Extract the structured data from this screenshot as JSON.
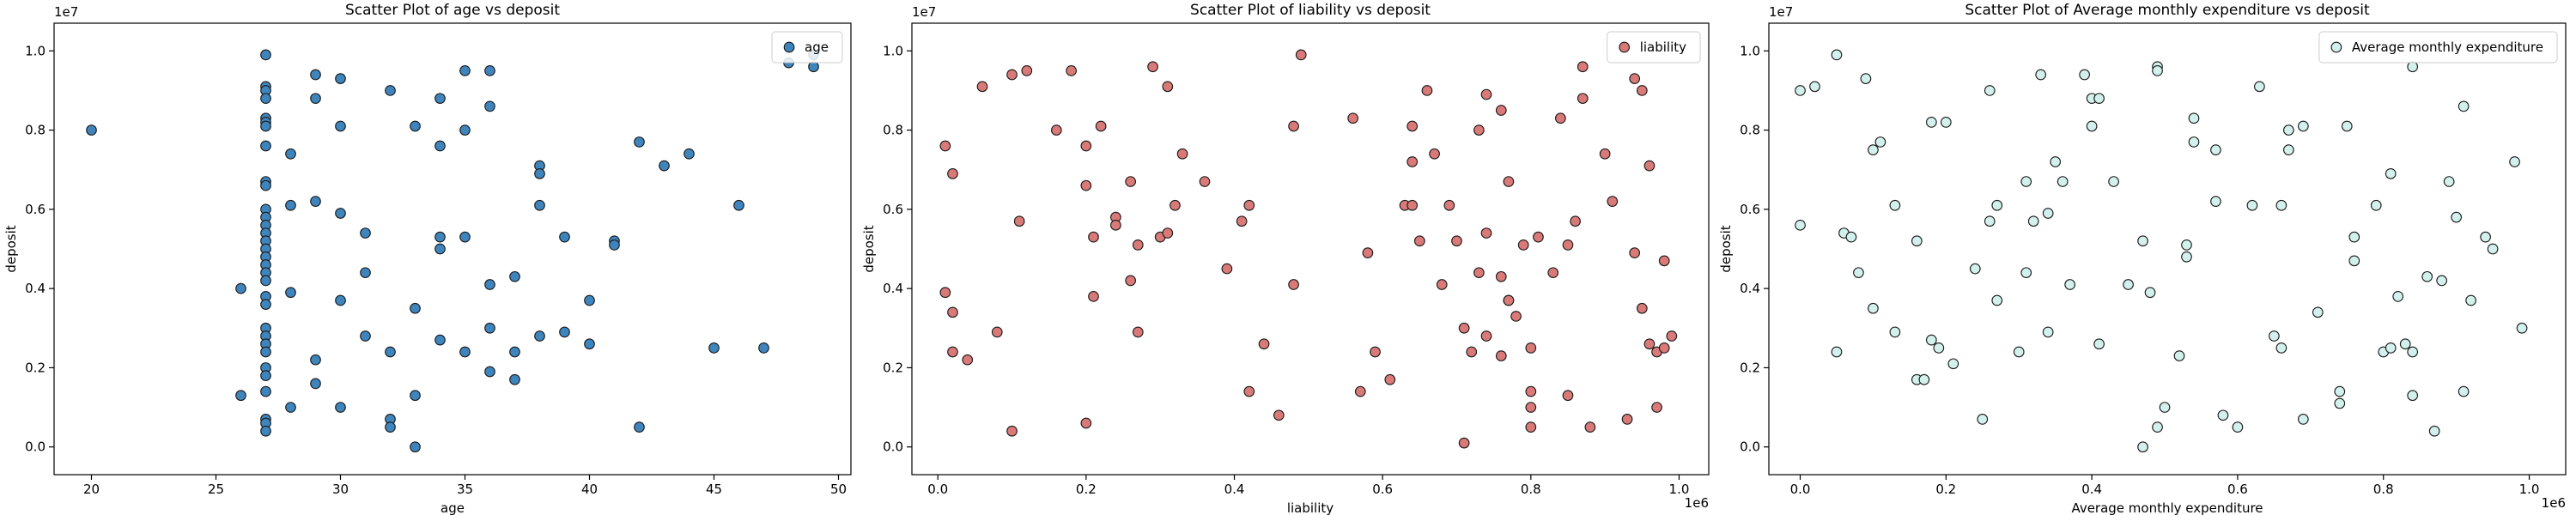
{
  "chart_data": [
    {
      "type": "scatter",
      "title": "Scatter Plot of age vs deposit",
      "x_label": "age",
      "y_label": "deposit",
      "y_offset_label": "1e7",
      "xlim": [
        18.5,
        50.5
      ],
      "xticks": [
        20,
        25,
        30,
        35,
        40,
        45,
        50
      ],
      "ylim": [
        -0.07,
        1.07
      ],
      "yticks": [
        {
          "value": 0,
          "label": "0.0"
        },
        0.2,
        0.4,
        0.6,
        0.8,
        {
          "value": 1,
          "label": "1.0"
        }
      ],
      "legend": "upper right",
      "grid": false,
      "series": [
        {
          "name": "age",
          "color": "#3f85bd",
          "edgecolor": "#1a1a1a",
          "x": [
            20,
            26,
            26,
            27,
            27,
            27,
            27,
            27,
            27,
            27,
            27,
            27,
            27,
            27,
            27,
            27,
            27,
            27,
            27,
            27,
            27,
            27,
            27,
            27,
            27,
            27,
            27,
            27,
            27,
            27,
            27,
            27,
            27,
            27,
            27,
            28,
            28,
            28,
            28,
            29,
            29,
            29,
            29,
            29,
            30,
            30,
            30,
            30,
            30,
            31,
            31,
            31,
            32,
            32,
            32,
            32,
            33,
            33,
            33,
            33,
            34,
            34,
            34,
            34,
            34,
            35,
            35,
            35,
            35,
            36,
            36,
            36,
            36,
            36,
            37,
            37,
            37,
            38,
            38,
            38,
            38,
            39,
            39,
            40,
            40,
            41,
            41,
            42,
            42,
            43,
            44,
            45,
            46,
            47,
            48,
            49,
            49
          ],
          "values": [
            0.8,
            0.4,
            0.13,
            0.99,
            0.91,
            0.9,
            0.88,
            0.83,
            0.82,
            0.81,
            0.76,
            0.67,
            0.66,
            0.6,
            0.58,
            0.56,
            0.54,
            0.52,
            0.5,
            0.48,
            0.46,
            0.44,
            0.42,
            0.38,
            0.36,
            0.3,
            0.28,
            0.26,
            0.24,
            0.2,
            0.18,
            0.14,
            0.07,
            0.06,
            0.04,
            0.74,
            0.61,
            0.39,
            0.1,
            0.94,
            0.88,
            0.62,
            0.22,
            0.16,
            0.93,
            0.81,
            0.59,
            0.37,
            0.1,
            0.54,
            0.44,
            0.28,
            0.9,
            0.24,
            0.07,
            0.05,
            0.81,
            0.35,
            0.13,
            0.0,
            0.88,
            0.76,
            0.53,
            0.5,
            0.27,
            0.95,
            0.8,
            0.53,
            0.24,
            0.95,
            0.86,
            0.41,
            0.3,
            0.19,
            0.43,
            0.24,
            0.17,
            0.71,
            0.69,
            0.61,
            0.28,
            0.53,
            0.29,
            0.37,
            0.26,
            0.52,
            0.51,
            0.77,
            0.05,
            0.71,
            0.74,
            0.25,
            0.61,
            0.25,
            0.97,
            0.99,
            0.96
          ]
        }
      ]
    },
    {
      "type": "scatter",
      "title": "Scatter Plot of liability vs deposit",
      "x_label": "liability",
      "y_label": "deposit",
      "y_offset_label": "1e7",
      "x_offset_label": "1e6",
      "xlim": [
        -0.035,
        1.04
      ],
      "xticks": [
        {
          "value": 0,
          "label": "0.0"
        },
        0.2,
        0.4,
        0.6,
        0.8,
        {
          "value": 1,
          "label": "1.0"
        }
      ],
      "ylim": [
        -0.07,
        1.07
      ],
      "yticks": [
        {
          "value": 0,
          "label": "0.0"
        },
        0.2,
        0.4,
        0.6,
        0.8,
        {
          "value": 1,
          "label": "1.0"
        }
      ],
      "legend": "upper right",
      "grid": false,
      "series": [
        {
          "name": "liability",
          "color": "#d97a78",
          "edgecolor": "#1a1a1a",
          "x": [
            0.01,
            0.01,
            0.02,
            0.02,
            0.02,
            0.04,
            0.06,
            0.08,
            0.1,
            0.1,
            0.11,
            0.12,
            0.16,
            0.18,
            0.2,
            0.2,
            0.2,
            0.21,
            0.21,
            0.22,
            0.24,
            0.24,
            0.26,
            0.26,
            0.27,
            0.27,
            0.29,
            0.3,
            0.31,
            0.31,
            0.32,
            0.33,
            0.36,
            0.39,
            0.41,
            0.42,
            0.42,
            0.44,
            0.46,
            0.48,
            0.48,
            0.49,
            0.56,
            0.57,
            0.58,
            0.59,
            0.61,
            0.63,
            0.64,
            0.64,
            0.64,
            0.65,
            0.66,
            0.67,
            0.68,
            0.69,
            0.7,
            0.71,
            0.71,
            0.72,
            0.73,
            0.73,
            0.74,
            0.74,
            0.74,
            0.76,
            0.76,
            0.76,
            0.77,
            0.77,
            0.77,
            0.78,
            0.79,
            0.8,
            0.8,
            0.8,
            0.8,
            0.81,
            0.83,
            0.84,
            0.85,
            0.85,
            0.86,
            0.87,
            0.87,
            0.88,
            0.9,
            0.91,
            0.93,
            0.94,
            0.94,
            0.95,
            0.95,
            0.96,
            0.96,
            0.97,
            0.97,
            0.98,
            0.98,
            0.99
          ],
          "values": [
            0.76,
            0.39,
            0.69,
            0.34,
            0.24,
            0.22,
            0.91,
            0.29,
            0.94,
            0.04,
            0.57,
            0.95,
            0.8,
            0.95,
            0.76,
            0.66,
            0.06,
            0.53,
            0.38,
            0.81,
            0.58,
            0.56,
            0.67,
            0.42,
            0.29,
            0.51,
            0.96,
            0.53,
            0.91,
            0.54,
            0.61,
            0.74,
            0.67,
            0.45,
            0.57,
            0.61,
            0.14,
            0.26,
            0.08,
            0.41,
            0.81,
            0.99,
            0.83,
            0.14,
            0.49,
            0.24,
            0.17,
            0.61,
            0.72,
            0.81,
            0.61,
            0.52,
            0.9,
            0.74,
            0.41,
            0.61,
            0.52,
            0.01,
            0.3,
            0.24,
            0.8,
            0.44,
            0.89,
            0.54,
            0.28,
            0.23,
            0.43,
            0.85,
            0.37,
            0.37,
            0.67,
            0.33,
            0.51,
            0.25,
            0.14,
            0.1,
            0.05,
            0.53,
            0.44,
            0.83,
            0.51,
            0.13,
            0.57,
            0.96,
            0.88,
            0.05,
            0.74,
            0.62,
            0.07,
            0.93,
            0.49,
            0.9,
            0.35,
            0.71,
            0.26,
            0.1,
            0.24,
            0.47,
            0.25,
            0.28
          ]
        }
      ]
    },
    {
      "type": "scatter",
      "title": "Scatter Plot of Average monthly expenditure vs deposit",
      "x_label": "Average monthly expenditure",
      "y_label": "deposit",
      "y_offset_label": "1e7",
      "x_offset_label": "1e6",
      "xlim": [
        -0.043,
        1.05
      ],
      "xticks": [
        {
          "value": 0,
          "label": "0.0"
        },
        0.2,
        0.4,
        0.6,
        0.8,
        {
          "value": 1,
          "label": "1.0"
        }
      ],
      "ylim": [
        -0.07,
        1.07
      ],
      "yticks": [
        {
          "value": 0,
          "label": "0.0"
        },
        0.2,
        0.4,
        0.6,
        0.8,
        {
          "value": 1,
          "label": "1.0"
        }
      ],
      "legend": "upper right",
      "grid": false,
      "series": [
        {
          "name": "Average monthly expenditure",
          "color": "#d3f1ec",
          "edgecolor": "#1a1a1a",
          "x": [
            0.0,
            0.0,
            0.02,
            0.05,
            0.05,
            0.06,
            0.07,
            0.08,
            0.09,
            0.1,
            0.1,
            0.11,
            0.13,
            0.13,
            0.16,
            0.16,
            0.17,
            0.18,
            0.18,
            0.19,
            0.2,
            0.21,
            0.24,
            0.25,
            0.26,
            0.26,
            0.27,
            0.27,
            0.3,
            0.31,
            0.31,
            0.32,
            0.33,
            0.34,
            0.34,
            0.35,
            0.36,
            0.37,
            0.39,
            0.4,
            0.4,
            0.41,
            0.41,
            0.43,
            0.45,
            0.47,
            0.47,
            0.48,
            0.49,
            0.49,
            0.49,
            0.5,
            0.52,
            0.53,
            0.53,
            0.54,
            0.54,
            0.57,
            0.57,
            0.58,
            0.6,
            0.62,
            0.63,
            0.65,
            0.66,
            0.66,
            0.67,
            0.67,
            0.69,
            0.69,
            0.71,
            0.74,
            0.74,
            0.75,
            0.76,
            0.76,
            0.79,
            0.8,
            0.81,
            0.81,
            0.82,
            0.83,
            0.84,
            0.84,
            0.84,
            0.86,
            0.87,
            0.88,
            0.89,
            0.9,
            0.91,
            0.91,
            0.92,
            0.94,
            0.95,
            0.98,
            0.99
          ],
          "values": [
            0.9,
            0.56,
            0.91,
            0.99,
            0.24,
            0.54,
            0.53,
            0.44,
            0.93,
            0.35,
            0.75,
            0.77,
            0.61,
            0.29,
            0.17,
            0.52,
            0.17,
            0.82,
            0.27,
            0.25,
            0.82,
            0.21,
            0.45,
            0.07,
            0.57,
            0.9,
            0.61,
            0.37,
            0.24,
            0.67,
            0.44,
            0.57,
            0.94,
            0.59,
            0.29,
            0.72,
            0.67,
            0.41,
            0.94,
            0.88,
            0.81,
            0.88,
            0.26,
            0.67,
            0.41,
            0.52,
            0.0,
            0.39,
            0.96,
            0.95,
            0.05,
            0.1,
            0.23,
            0.48,
            0.51,
            0.83,
            0.77,
            0.62,
            0.75,
            0.08,
            0.05,
            0.61,
            0.91,
            0.28,
            0.25,
            0.61,
            0.8,
            0.75,
            0.81,
            0.07,
            0.34,
            0.14,
            0.11,
            0.81,
            0.53,
            0.47,
            0.61,
            0.24,
            0.25,
            0.69,
            0.38,
            0.26,
            0.24,
            0.13,
            0.96,
            0.43,
            0.04,
            0.42,
            0.67,
            0.58,
            0.14,
            0.86,
            0.37,
            0.53,
            0.5,
            0.72,
            0.3
          ]
        }
      ]
    }
  ]
}
